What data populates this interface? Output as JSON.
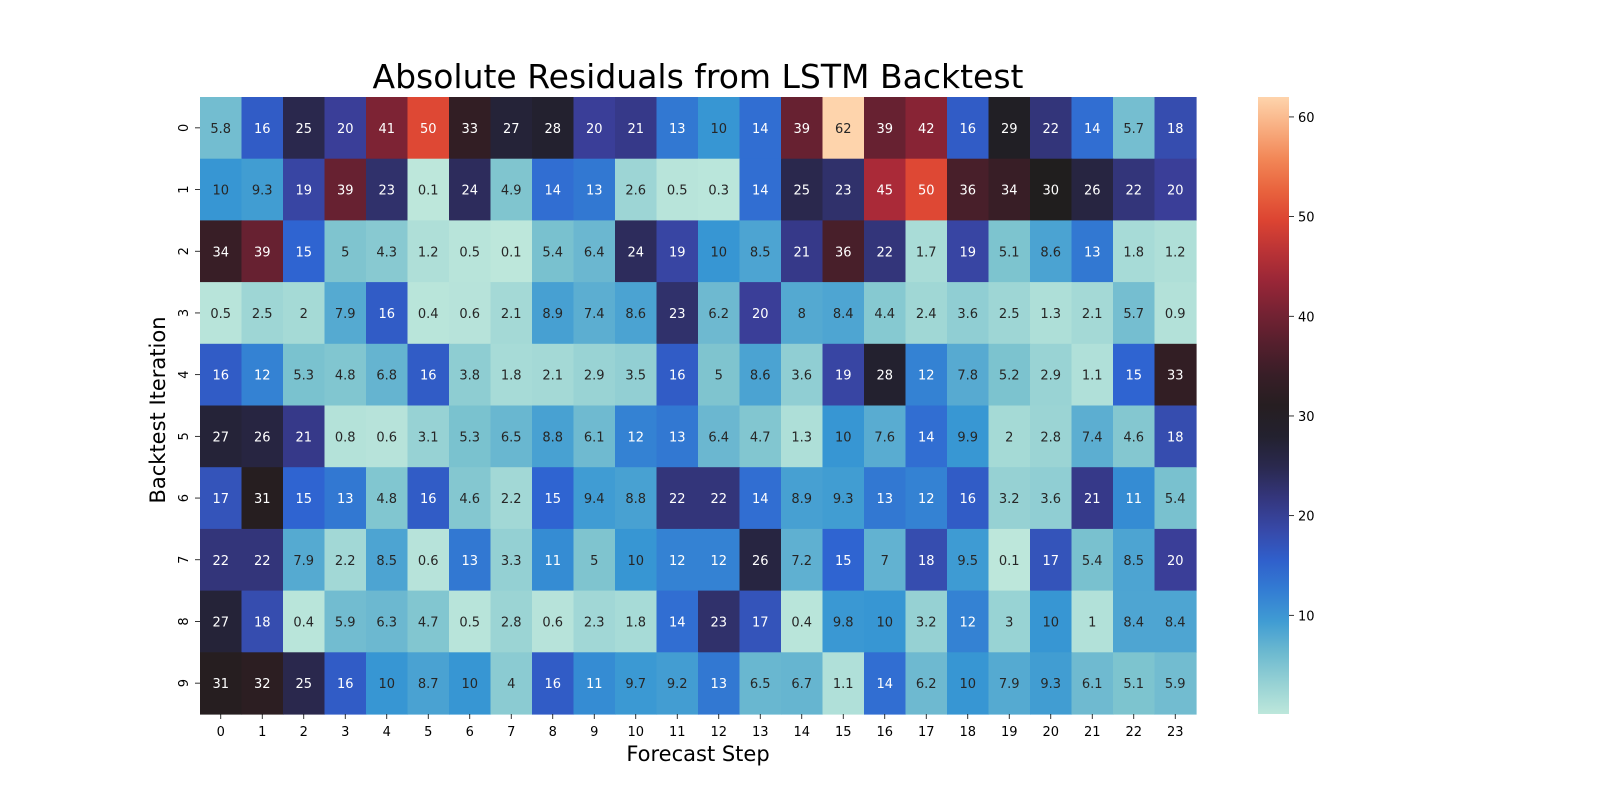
{
  "chart_data": {
    "type": "heatmap",
    "title": "Absolute Residuals from LSTM Backtest",
    "xlabel": "Forecast Step",
    "ylabel": "Backtest Iteration",
    "x_ticks": [
      "0",
      "1",
      "2",
      "3",
      "4",
      "5",
      "6",
      "7",
      "8",
      "9",
      "10",
      "11",
      "12",
      "13",
      "14",
      "15",
      "16",
      "17",
      "18",
      "19",
      "20",
      "21",
      "22",
      "23"
    ],
    "y_ticks": [
      "0",
      "1",
      "2",
      "3",
      "4",
      "5",
      "6",
      "7",
      "8",
      "9"
    ],
    "values": [
      [
        5.8,
        16,
        25,
        20,
        41,
        50,
        33,
        27,
        28,
        20,
        21,
        13,
        10,
        14,
        39,
        62,
        39,
        42,
        16,
        29,
        22,
        14,
        5.7,
        18
      ],
      [
        10,
        9.3,
        19,
        39,
        23,
        0.1,
        24,
        4.9,
        14,
        13,
        2.6,
        0.5,
        0.3,
        14,
        25,
        23,
        45,
        50,
        36,
        34,
        30,
        26,
        22,
        20
      ],
      [
        34,
        39,
        15,
        5,
        4.3,
        1.2,
        0.5,
        0.1,
        5.4,
        6.4,
        24,
        19,
        10,
        8.5,
        21,
        36,
        22,
        1.7,
        19,
        5.1,
        8.6,
        13,
        1.8,
        1.2
      ],
      [
        0.5,
        2.5,
        2,
        7.9,
        16,
        0.4,
        0.6,
        2.1,
        8.9,
        7.4,
        8.6,
        23,
        6.2,
        20,
        8,
        8.4,
        4.4,
        2.4,
        3.6,
        2.5,
        1.3,
        2.1,
        5.7,
        0.9
      ],
      [
        16,
        12,
        5.3,
        4.8,
        6.8,
        16,
        3.8,
        1.8,
        2.1,
        2.9,
        3.5,
        16,
        5,
        8.6,
        3.6,
        19,
        28,
        12,
        7.8,
        5.2,
        2.9,
        1.1,
        15,
        33
      ],
      [
        27,
        26,
        21,
        0.8,
        0.6,
        3.1,
        5.3,
        6.5,
        8.8,
        6.1,
        12,
        13,
        6.4,
        4.7,
        1.3,
        10,
        7.6,
        14,
        9.9,
        2,
        2.8,
        7.4,
        4.6,
        18
      ],
      [
        17,
        31,
        15,
        13,
        4.8,
        16,
        4.6,
        2.2,
        15,
        9.4,
        8.8,
        22,
        22,
        14,
        8.9,
        9.3,
        13,
        12,
        16,
        3.2,
        3.6,
        21,
        11,
        5.4
      ],
      [
        22,
        22,
        7.9,
        2.2,
        8.5,
        0.6,
        13,
        3.3,
        11,
        5,
        10,
        12,
        12,
        26,
        7.2,
        15,
        7,
        18,
        9.5,
        0.1,
        17,
        5.4,
        8.5,
        20
      ],
      [
        27,
        18,
        0.4,
        5.9,
        6.3,
        4.7,
        0.5,
        2.8,
        0.6,
        2.3,
        1.8,
        14,
        23,
        17,
        0.4,
        9.8,
        10,
        3.2,
        12,
        3,
        10,
        1,
        8.4,
        8.4
      ],
      [
        31,
        32,
        25,
        16,
        10,
        8.7,
        10,
        4,
        16,
        11,
        9.7,
        9.2,
        13,
        6.5,
        6.7,
        1.1,
        14,
        6.2,
        10,
        7.9,
        9.3,
        6.1,
        5.1,
        5.9
      ]
    ],
    "colormap": "icefire",
    "vmin": 0.1,
    "vmax": 62,
    "colorbar_ticks": [
      "10",
      "20",
      "30",
      "40",
      "50",
      "60"
    ]
  }
}
